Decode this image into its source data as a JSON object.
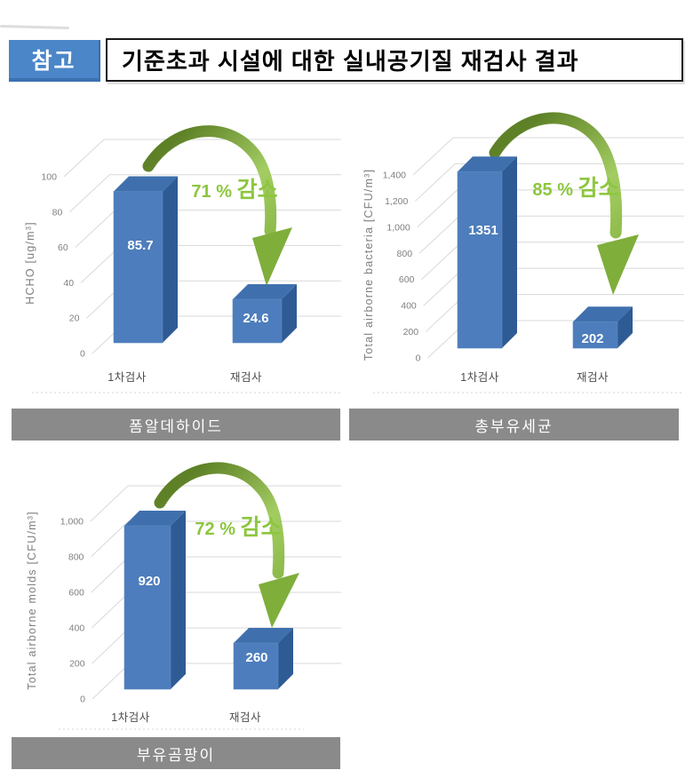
{
  "header": {
    "badge": "참고",
    "title": "기준초과 시설에 대한 실내공기질 재검사 결과"
  },
  "colors": {
    "badge_bg": "#4a86c8",
    "bar_front": "#4d7dbc",
    "bar_top": "#3f70ad",
    "bar_side": "#2f5b95",
    "grid": "#d9d9d9",
    "tick_text": "#7f7f7f",
    "category_text": "#4d4d4d",
    "value_text": "#ffffff",
    "green_text": "#8dc63f",
    "arrow_dark": "#5e8127",
    "arrow_mid": "#a3cd62",
    "arrow_head": "#7fae3b",
    "caption_bg": "#8a8a8a"
  },
  "chart_data": [
    {
      "type": "bar",
      "caption": "폼알데하이드",
      "ylabel": "HCHO [ug/m³]",
      "categories": [
        "1차검사",
        "재검사"
      ],
      "values": [
        85.7,
        24.6
      ],
      "value_labels": [
        "85.7",
        "24.6"
      ],
      "yticks": [
        "0",
        "20",
        "40",
        "60",
        "80",
        "100"
      ],
      "ylim": [
        0,
        100
      ],
      "annotation": "71 % 감소",
      "annotation_pct": "71 %",
      "annotation_word": "감소",
      "legend": "none",
      "grid": "on"
    },
    {
      "type": "bar",
      "caption": "총부유세균",
      "ylabel": "Total airborne bacteria [CFU/m³]",
      "categories": [
        "1차검사",
        "재검사"
      ],
      "values": [
        1351,
        202
      ],
      "value_labels": [
        "1351",
        "202"
      ],
      "yticks": [
        "0",
        "200",
        "400",
        "600",
        "800",
        "1,000",
        "1,200",
        "1,400"
      ],
      "ylim": [
        0,
        1400
      ],
      "annotation": "85 % 감소",
      "annotation_pct": "85 %",
      "annotation_word": "감소",
      "legend": "none",
      "grid": "on"
    },
    {
      "type": "bar",
      "caption": "부유곰팡이",
      "ylabel": "Total airborne molds [CFU/m³]",
      "categories": [
        "1차검사",
        "재검사"
      ],
      "values": [
        920,
        260
      ],
      "value_labels": [
        "920",
        "260"
      ],
      "yticks": [
        "0",
        "200",
        "400",
        "600",
        "800",
        "1,000"
      ],
      "ylim": [
        0,
        1000
      ],
      "annotation": "72 % 감소",
      "annotation_pct": "72 %",
      "annotation_word": "감소",
      "legend": "none",
      "grid": "on"
    }
  ]
}
